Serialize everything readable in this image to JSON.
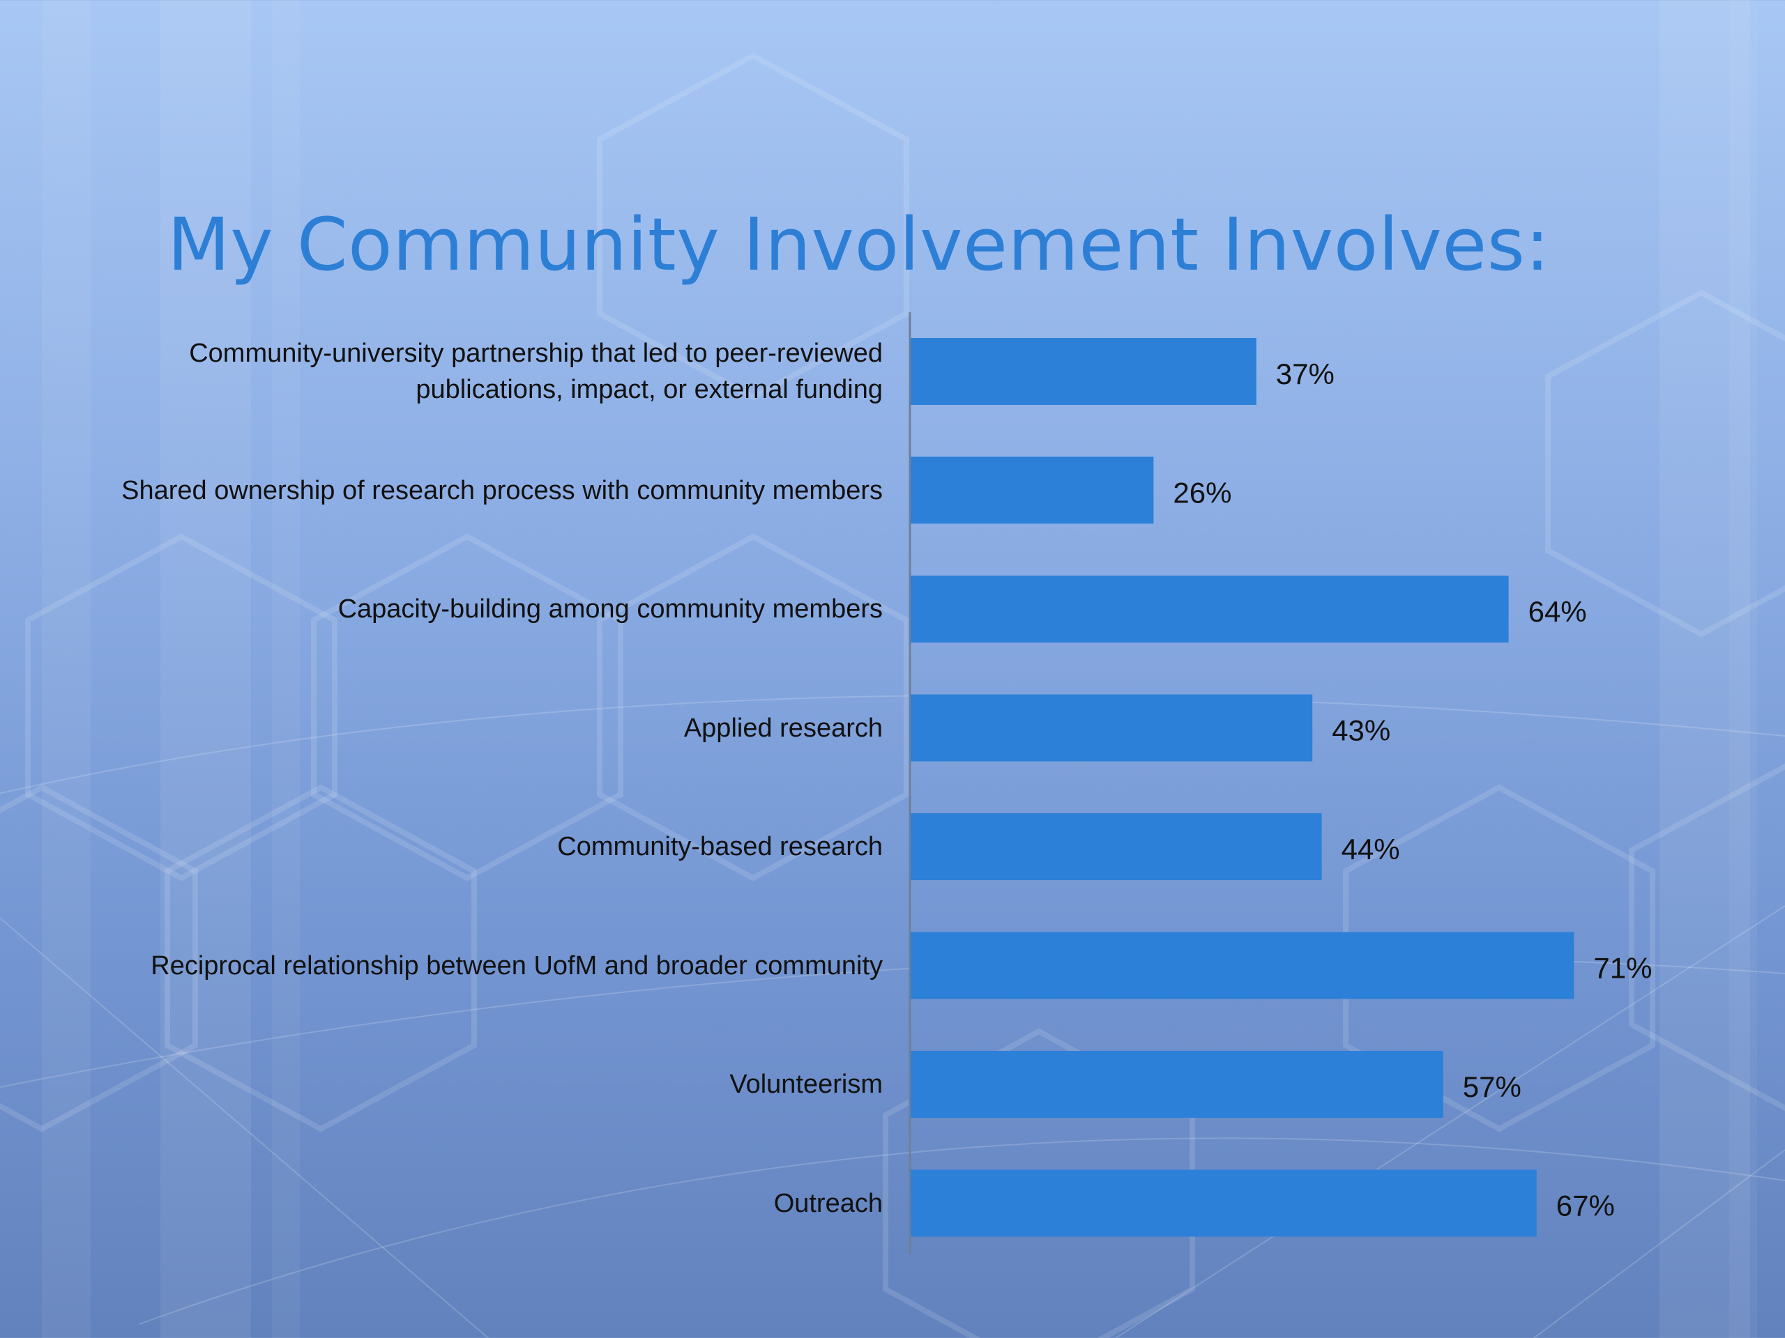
{
  "slide": {
    "title": "My Community Involvement Involves:"
  },
  "colors": {
    "bar": "#2c80d8",
    "title": "#2d7fd6",
    "axis": "#6f7f96",
    "text": "#111111"
  },
  "chart_data": {
    "type": "bar",
    "orientation": "horizontal",
    "title": "",
    "xlabel": "",
    "ylabel": "",
    "xlim": [
      0,
      100
    ],
    "grid": false,
    "legend": "none",
    "categories": [
      "Community-university partnership that led to peer-reviewed publications, impact, or external funding",
      "Shared ownership of research process with community members",
      "Capacity-building among community members",
      "Applied research",
      "Community-based research",
      "Reciprocal relationship between UofM and broader community",
      "Volunteerism",
      "Outreach"
    ],
    "values": [
      37,
      26,
      64,
      43,
      44,
      71,
      57,
      67
    ],
    "data_labels": [
      "37%",
      "26%",
      "64%",
      "43%",
      "44%",
      "71%",
      "57%",
      "67%"
    ]
  }
}
